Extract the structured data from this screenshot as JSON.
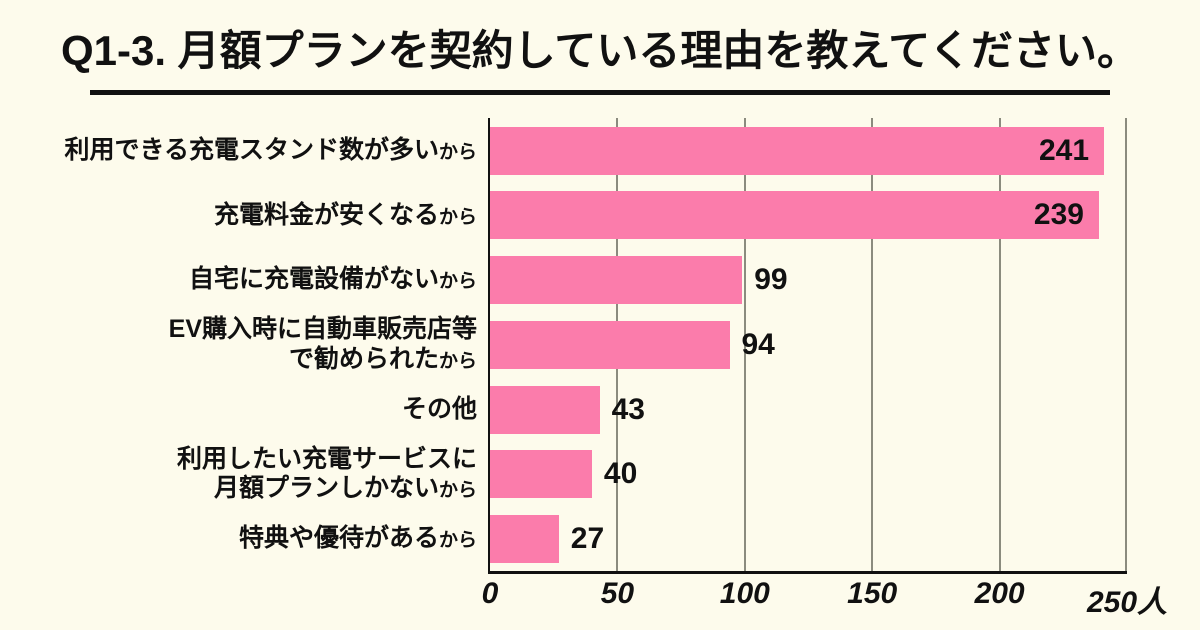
{
  "page": {
    "background": "#FDFBEC"
  },
  "header": {
    "title": "Q1-3. 月額プランを契約している理由を教えてください。"
  },
  "colors": {
    "bar": "#FB7CAB",
    "grid": "#8B8B7E",
    "axis": "#111111",
    "background": "#FDFBEC"
  },
  "chart_data": {
    "type": "bar",
    "orientation": "horizontal",
    "title": "Q1-3. 月額プランを契約している理由を教えてください。",
    "unit": "人",
    "xlim": [
      0,
      250
    ],
    "x_ticks": [
      "0",
      "50",
      "100",
      "150",
      "200",
      "250人"
    ],
    "grid": true,
    "legend": false,
    "bar_color": "#FB7CAB",
    "categories": [
      "利用できる充電スタンド数が多いから",
      "充電料金が安くなるから",
      "自宅に充電設備がないから",
      "EV購入時に自動車販売店等で勧められたから",
      "その他",
      "利用したい充電サービスに月額プランしかないから",
      "特典や優待があるから"
    ],
    "values": [
      241,
      239,
      99,
      94,
      43,
      40,
      27
    ],
    "rows": [
      {
        "lines": [
          "利用できる充電スタンド数が多い"
        ],
        "suffix": "から",
        "value": 241,
        "label_inside": true
      },
      {
        "lines": [
          "充電料金が安くなる"
        ],
        "suffix": "から",
        "value": 239,
        "label_inside": true
      },
      {
        "lines": [
          "自宅に充電設備がない"
        ],
        "suffix": "から",
        "value": 99,
        "label_inside": false
      },
      {
        "lines": [
          "EV購入時に自動車販売店等",
          "で勧められた"
        ],
        "suffix": "から",
        "value": 94,
        "label_inside": false
      },
      {
        "lines": [
          "その他"
        ],
        "suffix": "",
        "value": 43,
        "label_inside": false
      },
      {
        "lines": [
          "利用したい充電サービスに",
          "月額プランしかない"
        ],
        "suffix": "から",
        "value": 40,
        "label_inside": false
      },
      {
        "lines": [
          "特典や優待がある"
        ],
        "suffix": "から",
        "value": 27,
        "label_inside": false
      }
    ]
  }
}
